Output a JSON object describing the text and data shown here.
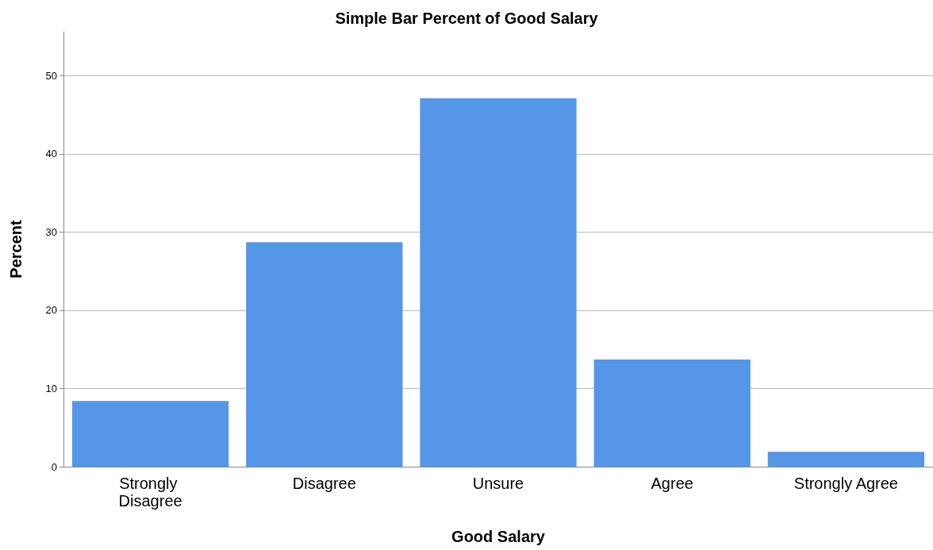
{
  "chart_data": {
    "type": "bar",
    "title": "Simple Bar Percent of Good Salary",
    "xlabel": "Good Salary",
    "ylabel": "Percent",
    "categories": [
      "Strongly Disagree",
      "Disagree",
      "Unsure",
      "Agree",
      "Strongly Agree"
    ],
    "values": [
      8.4,
      28.7,
      47.1,
      13.7,
      1.9
    ],
    "color": "#5596e6",
    "ylim": [
      0,
      55.6
    ],
    "yticks": [
      0,
      10,
      20,
      30,
      40,
      50
    ],
    "grid": "y"
  }
}
